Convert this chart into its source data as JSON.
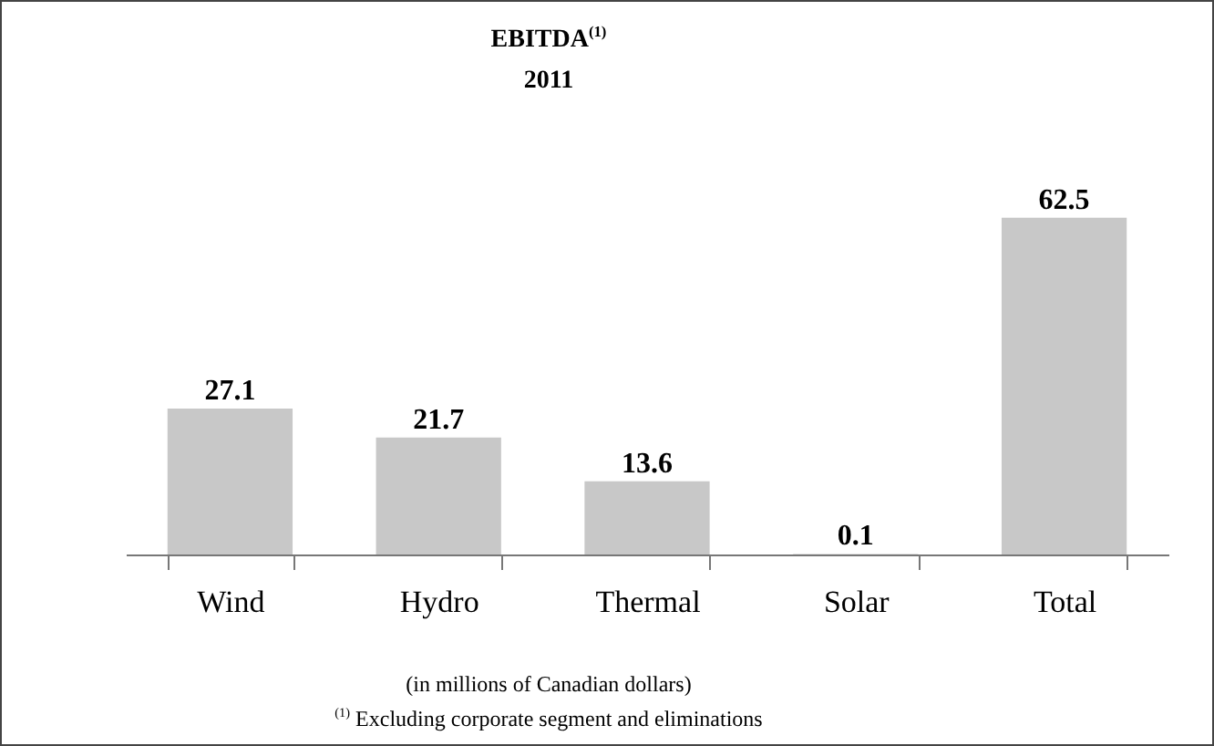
{
  "chart_data": {
    "type": "bar",
    "title": "EBITDA$^{(1)}$",
    "subtitle": "2011",
    "categories": [
      "Wind",
      "Hydro",
      "Thermal",
      "Solar",
      "Total"
    ],
    "values": [
      27.1,
      21.7,
      13.6,
      0.1,
      62.5
    ],
    "color": "#c8c8c8",
    "data_labels": true,
    "annotations": [
      "(in millions of Canadian dollars)",
      "$^{(1)}$ Excluding corporate segment and eliminations"
    ]
  }
}
